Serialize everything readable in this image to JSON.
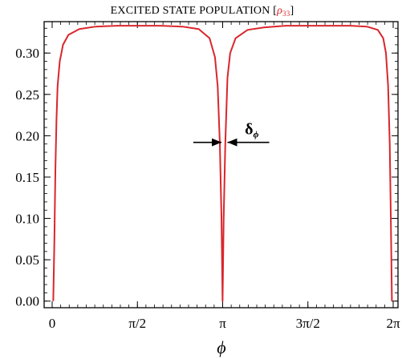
{
  "chart_data": {
    "type": "line",
    "title_prefix": "EXCITED STATE POPULATION [",
    "title_symbol": "ρ",
    "title_subscript": "33",
    "title_suffix": "]",
    "xlabel": "ϕ",
    "ylabel": "",
    "xlim": [
      0,
      6.2832
    ],
    "ylim": [
      -0.008,
      0.338
    ],
    "x_ticks": [
      {
        "value": 0,
        "label": "0"
      },
      {
        "value": 1.5708,
        "label": "π/2"
      },
      {
        "value": 3.1416,
        "label": "π"
      },
      {
        "value": 4.7124,
        "label": "3π/2"
      },
      {
        "value": 6.2832,
        "label": "2π"
      }
    ],
    "y_ticks": [
      {
        "value": 0.0,
        "label": "0.00"
      },
      {
        "value": 0.05,
        "label": "0.05"
      },
      {
        "value": 0.1,
        "label": "0.10"
      },
      {
        "value": 0.15,
        "label": "0.15"
      },
      {
        "value": 0.2,
        "label": "0.20"
      },
      {
        "value": 0.25,
        "label": "0.25"
      },
      {
        "value": 0.3,
        "label": "0.30"
      }
    ],
    "grid": false,
    "series": [
      {
        "color": "#d9262c",
        "x": [
          0.02,
          0.04,
          0.06,
          0.08,
          0.1,
          0.14,
          0.2,
          0.3,
          0.5,
          0.8,
          1.2,
          1.6,
          2.0,
          2.4,
          2.7,
          2.9,
          3.0,
          3.05,
          3.09,
          3.12,
          3.14,
          3.16,
          3.19,
          3.23,
          3.28,
          3.38,
          3.6,
          3.9,
          4.3,
          4.7,
          5.1,
          5.5,
          5.8,
          6.0,
          6.1,
          6.15,
          6.19,
          6.22,
          6.24,
          6.26
        ],
        "y": [
          0.0,
          0.07,
          0.16,
          0.22,
          0.26,
          0.29,
          0.31,
          0.322,
          0.329,
          0.332,
          0.333,
          0.333,
          0.333,
          0.332,
          0.329,
          0.318,
          0.295,
          0.26,
          0.19,
          0.1,
          0.0,
          0.1,
          0.19,
          0.27,
          0.3,
          0.318,
          0.328,
          0.331,
          0.333,
          0.333,
          0.333,
          0.333,
          0.332,
          0.328,
          0.318,
          0.3,
          0.26,
          0.19,
          0.1,
          0.0
        ]
      }
    ],
    "annotation": {
      "label_main": "δ",
      "label_sub": "ϕ",
      "arrow_y": 0.192,
      "left_arrow_x": [
        2.6,
        3.12
      ],
      "right_arrow_x": [
        4.0,
        3.23
      ]
    }
  }
}
